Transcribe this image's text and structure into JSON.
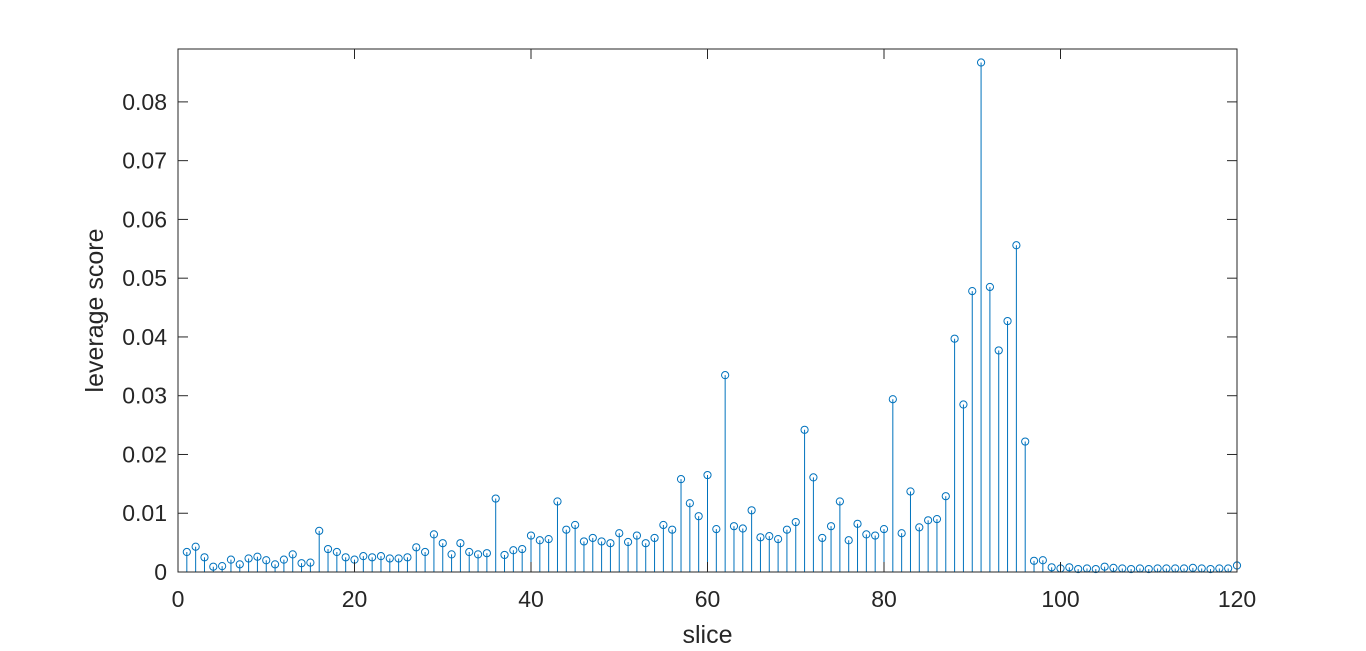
{
  "chart_data": {
    "type": "stem",
    "title": "",
    "xlabel": "slice",
    "ylabel": "leverage score",
    "xlim": [
      0,
      120
    ],
    "ylim": [
      0,
      0.089
    ],
    "xticks": [
      0,
      20,
      40,
      60,
      80,
      100,
      120
    ],
    "yticks": [
      0,
      0.01,
      0.02,
      0.03,
      0.04,
      0.05,
      0.06,
      0.07,
      0.08
    ],
    "xtick_labels": [
      "0",
      "20",
      "40",
      "60",
      "80",
      "100",
      "120"
    ],
    "ytick_labels": [
      "0",
      "0.01",
      "0.02",
      "0.03",
      "0.04",
      "0.05",
      "0.06",
      "0.07",
      "0.08"
    ],
    "grid": false,
    "box": true,
    "series": [
      {
        "color": "#0072BD",
        "marker": "circle",
        "x": [
          1,
          2,
          3,
          4,
          5,
          6,
          7,
          8,
          9,
          10,
          11,
          12,
          13,
          14,
          15,
          16,
          17,
          18,
          19,
          20,
          21,
          22,
          23,
          24,
          25,
          26,
          27,
          28,
          29,
          30,
          31,
          32,
          33,
          34,
          35,
          36,
          37,
          38,
          39,
          40,
          41,
          42,
          43,
          44,
          45,
          46,
          47,
          48,
          49,
          50,
          51,
          52,
          53,
          54,
          55,
          56,
          57,
          58,
          59,
          60,
          61,
          62,
          63,
          64,
          65,
          66,
          67,
          68,
          69,
          70,
          71,
          72,
          73,
          74,
          75,
          76,
          77,
          78,
          79,
          80,
          81,
          82,
          83,
          84,
          85,
          86,
          87,
          88,
          89,
          90,
          91,
          92,
          93,
          94,
          95,
          96,
          97,
          98,
          99,
          100,
          101,
          102,
          103,
          104,
          105,
          106,
          107,
          108,
          109,
          110,
          111,
          112,
          113,
          114,
          115,
          116,
          117,
          118,
          119,
          120
        ],
        "y": [
          0.0034,
          0.0043,
          0.0025,
          0.0009,
          0.001,
          0.0021,
          0.0013,
          0.0023,
          0.0026,
          0.002,
          0.0013,
          0.0021,
          0.003,
          0.0015,
          0.0016,
          0.007,
          0.0039,
          0.0034,
          0.0025,
          0.0021,
          0.0027,
          0.0025,
          0.0027,
          0.0023,
          0.0023,
          0.0025,
          0.0042,
          0.0034,
          0.0064,
          0.0049,
          0.003,
          0.0049,
          0.0034,
          0.003,
          0.0032,
          0.0125,
          0.0029,
          0.0037,
          0.0039,
          0.0062,
          0.0054,
          0.0056,
          0.012,
          0.0072,
          0.008,
          0.0052,
          0.0058,
          0.0052,
          0.0049,
          0.0066,
          0.0051,
          0.0062,
          0.0049,
          0.0058,
          0.008,
          0.0072,
          0.0158,
          0.0117,
          0.0095,
          0.0165,
          0.0073,
          0.0335,
          0.0078,
          0.0074,
          0.0105,
          0.0059,
          0.0061,
          0.0056,
          0.0072,
          0.0085,
          0.0242,
          0.0161,
          0.0058,
          0.0078,
          0.012,
          0.0054,
          0.0082,
          0.0064,
          0.0062,
          0.0073,
          0.0294,
          0.0066,
          0.0137,
          0.0076,
          0.0088,
          0.009,
          0.0129,
          0.0397,
          0.0285,
          0.0478,
          0.0867,
          0.0485,
          0.0377,
          0.0427,
          0.0556,
          0.0222,
          0.0019,
          0.002,
          0.0008,
          0.0006,
          0.0008,
          0.0005,
          0.0006,
          0.0005,
          0.0009,
          0.0007,
          0.0006,
          0.0005,
          0.0006,
          0.0005,
          0.0006,
          0.0006,
          0.0006,
          0.0006,
          0.0007,
          0.0006,
          0.0005,
          0.0006,
          0.0006,
          0.0011
        ]
      }
    ]
  }
}
